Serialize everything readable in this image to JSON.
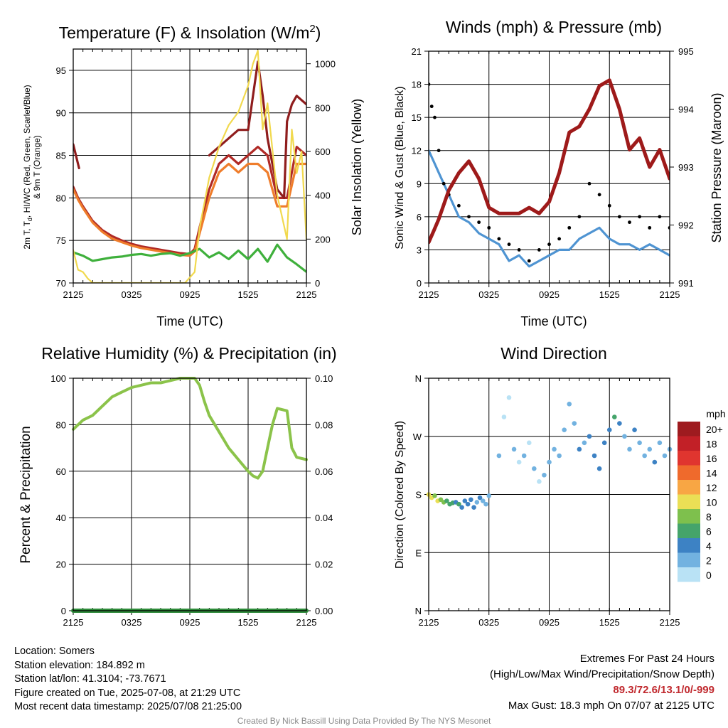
{
  "panels": {
    "temp": {
      "title_main": "Temperature (F) & Insolation (W/m",
      "title_sup": "2",
      "title_end": ")",
      "xlabel": "Time (UTC)",
      "ylabel_left_line1": "2m T, T",
      "ylabel_left_sub": "d",
      "ylabel_left_line1_end": ", HI/WC (Red, Green, Scarlet/Blue)",
      "ylabel_left_line2": "& 9m T (Orange)",
      "ylabel_right": "Solar Insolation (Yellow)"
    },
    "winds": {
      "title": "Winds (mph) & Pressure (mb)",
      "xlabel": "Time (UTC)",
      "ylabel_left": "Sonic Wind & Gust (Blue, Black)",
      "ylabel_right": "Station Pressure (Maroon)"
    },
    "rh": {
      "title": "Relative Humidity (%) & Precipitation (in)",
      "ylabel_left": "Percent & Precipitation"
    },
    "wdir": {
      "title": "Wind Direction",
      "ylabel_left": "Direction (Colored By Speed)",
      "colorbar_unit": "mph",
      "colorbar_labels": [
        "20+",
        "18",
        "16",
        "14",
        "12",
        "10",
        "8",
        "6",
        "4",
        "2",
        "0"
      ],
      "colorbar_colors": [
        "#9e1b1f",
        "#c22027",
        "#e0352f",
        "#ef6a2c",
        "#f8a644",
        "#eadf55",
        "#7ec04d",
        "#45a46b",
        "#3d82c4",
        "#72b2e0",
        "#b9e2f5"
      ]
    }
  },
  "footer": {
    "location": "Location: Somers",
    "elevation": "Station elevation: 184.892 m",
    "latlon": "Station lat/lon: 41.3104; -73.7671",
    "created": "Figure created on Tue, 2025-07-08, at 21:29 UTC",
    "recent": "Most recent data timestamp: 2025/07/08 21:25:00",
    "extremes_title": "Extremes For Past 24 Hours",
    "extremes_sub": "(High/Low/Max Wind/Precipitation/Snow Depth)",
    "extremes_values": "89.3/72.6/13.1/0/-999",
    "max_gust": "Max Gust: 18.3 mph On 07/07 at 2125 UTC",
    "credit": "Created By Nick Bassill Using Data Provided By The NYS Mesonet"
  },
  "chart_data": [
    {
      "type": "line",
      "panel": "Temperature & Insolation",
      "x_ticks": [
        "2125",
        "0325",
        "0925",
        "1525",
        "2125"
      ],
      "x_hours_since_2125": [
        0,
        6,
        12,
        18,
        24
      ],
      "ylim_left": [
        70,
        97.5
      ],
      "yticks_left": [
        70,
        75,
        80,
        85,
        90,
        95
      ],
      "ylim_right": [
        0,
        1067
      ],
      "yticks_right": [
        0,
        200,
        400,
        600,
        800,
        1000
      ],
      "series": [
        {
          "color": "#b02a26",
          "axis": "left",
          "x": [
            0,
            0.5,
            1,
            2,
            3,
            4,
            5,
            6,
            7,
            8,
            9,
            10,
            11,
            12,
            12.5,
            13,
            14,
            15,
            16,
            17,
            18,
            19,
            20,
            21,
            22,
            23,
            24
          ],
          "y": [
            81.3,
            80,
            79,
            77.3,
            76.2,
            75.5,
            75,
            74.6,
            74.3,
            74.1,
            73.9,
            73.7,
            73.5,
            73.4,
            74,
            76.5,
            81,
            84,
            85,
            84,
            85,
            86,
            85,
            80,
            80,
            86,
            85
          ]
        },
        {
          "color": "#ef7d2b",
          "axis": "left",
          "x": [
            0,
            0.5,
            1,
            2,
            3,
            4,
            5,
            6,
            7,
            8,
            9,
            10,
            11,
            12,
            12.5,
            13,
            14,
            15,
            16,
            17,
            18,
            19,
            20,
            21,
            22,
            23,
            24
          ],
          "y": [
            81,
            79.8,
            78.8,
            77.1,
            76,
            75.2,
            74.8,
            74.4,
            74.1,
            73.9,
            73.7,
            73.5,
            73.3,
            73.2,
            73.7,
            75.8,
            80,
            83,
            84,
            83,
            84,
            84,
            83,
            79,
            79,
            84,
            84
          ]
        },
        {
          "color": "#8f1d1d",
          "axis": "left",
          "x": [
            0,
            0.6,
            13,
            14,
            15,
            16,
            17,
            18,
            19,
            19.5,
            20,
            21,
            21.7,
            22,
            22.5,
            23,
            24
          ],
          "y": [
            86.3,
            83.5,
            null,
            85,
            86,
            87,
            88,
            88,
            96,
            92,
            87,
            81,
            80,
            89,
            91,
            92,
            91
          ]
        },
        {
          "color": "#3fb03c",
          "axis": "left",
          "x": [
            0,
            1,
            2,
            3,
            4,
            5,
            6,
            7,
            8,
            9,
            10,
            11,
            12,
            13,
            14,
            15,
            16,
            17,
            18,
            19,
            20,
            21,
            22,
            23,
            24
          ],
          "y": [
            73.6,
            73.2,
            72.6,
            72.8,
            73,
            73.1,
            73.3,
            73.4,
            73.2,
            73.4,
            73.5,
            73.2,
            73.5,
            74,
            73,
            73.6,
            72.8,
            73.8,
            72.8,
            74,
            72.5,
            74.5,
            73,
            72.2,
            71.3
          ]
        },
        {
          "color": "#f1d94e",
          "axis": "right",
          "x": [
            0,
            0.5,
            1,
            1.5,
            2,
            3,
            4,
            6,
            8,
            10,
            11.5,
            12.5,
            13,
            14,
            15,
            16,
            17,
            18,
            18.5,
            19,
            19.5,
            20,
            21,
            22,
            22.5,
            23,
            23.5,
            24
          ],
          "y": [
            150,
            60,
            50,
            20,
            0,
            0,
            0,
            0,
            0,
            0,
            0,
            50,
            250,
            480,
            620,
            720,
            780,
            900,
            1000,
            1060,
            700,
            820,
            400,
            200,
            700,
            500,
            600,
            200
          ]
        }
      ]
    },
    {
      "type": "line",
      "panel": "Winds & Pressure",
      "x_ticks": [
        "2125",
        "0325",
        "0925",
        "1525",
        "2125"
      ],
      "x_hours_since_2125": [
        0,
        6,
        12,
        18,
        24
      ],
      "ylim_left": [
        0,
        21
      ],
      "yticks_left": [
        0,
        3,
        6,
        9,
        12,
        15,
        18,
        21
      ],
      "ylim_right": [
        991,
        995
      ],
      "yticks_right": [
        991,
        992,
        993,
        994,
        995
      ],
      "series": [
        {
          "color": "#4f94d2",
          "axis": "left",
          "x": [
            0,
            0.5,
            1,
            2,
            3,
            4,
            5,
            6,
            7,
            8,
            9,
            10,
            11,
            12,
            13,
            14,
            15,
            16,
            17,
            18,
            19,
            20,
            21,
            22,
            23,
            24
          ],
          "y": [
            12,
            11,
            10,
            8,
            6,
            5.5,
            4.5,
            4,
            3.5,
            2,
            2.5,
            1.5,
            2,
            2.5,
            3,
            3,
            4,
            4.5,
            5,
            4,
            3.5,
            3.5,
            3,
            3.5,
            3,
            2.5
          ]
        },
        {
          "color": "#000000",
          "axis": "left",
          "style": "points",
          "x": [
            0,
            0.3,
            0.6,
            1,
            1.5,
            2,
            3,
            4,
            5,
            6,
            7,
            8,
            9,
            10,
            11,
            12,
            13,
            14,
            15,
            16,
            17,
            18,
            19,
            20,
            21,
            22,
            23,
            24
          ],
          "y": [
            18,
            16,
            15,
            12,
            9,
            8,
            7,
            6,
            5.5,
            5,
            4,
            3.5,
            3,
            2,
            3,
            3.5,
            4,
            5,
            6,
            9,
            8,
            7,
            6,
            5.5,
            6,
            5,
            6,
            5
          ]
        },
        {
          "color": "#9e1a1a",
          "axis": "right",
          "x": [
            0,
            0.5,
            1,
            2,
            3,
            4,
            5,
            6,
            7,
            8,
            9,
            10,
            11,
            12,
            13,
            14,
            15,
            16,
            17,
            18,
            19,
            20,
            21,
            22,
            23,
            24
          ],
          "y": [
            991.7,
            991.9,
            992.1,
            992.6,
            992.9,
            993.1,
            992.8,
            992.3,
            992.2,
            992.2,
            992.2,
            992.3,
            992.2,
            992.4,
            992.9,
            993.6,
            993.7,
            994.0,
            994.4,
            994.5,
            994.0,
            993.3,
            993.5,
            993.0,
            993.3,
            992.8
          ]
        }
      ]
    },
    {
      "type": "line",
      "panel": "Relative Humidity & Precipitation",
      "x_ticks": [
        "2125",
        "0325",
        "0925",
        "1525",
        "2125"
      ],
      "x_hours_since_2125": [
        0,
        6,
        12,
        18,
        24
      ],
      "ylim_left": [
        0,
        100
      ],
      "yticks_left": [
        0,
        20,
        40,
        60,
        80,
        100
      ],
      "ylim_right": [
        0,
        0.1
      ],
      "yticks_right": [
        0.0,
        0.02,
        0.04,
        0.06,
        0.08,
        0.1
      ],
      "series": [
        {
          "color": "#8bc34a",
          "axis": "left",
          "x": [
            0,
            0.5,
            1,
            2,
            3,
            4,
            5,
            6,
            7,
            8,
            9,
            10,
            11,
            12,
            12.5,
            13,
            13.5,
            14,
            15,
            16,
            17,
            18,
            18.5,
            19,
            19.5,
            20,
            20.5,
            21,
            22,
            22.5,
            23,
            24
          ],
          "y": [
            78,
            80,
            82,
            84,
            88,
            92,
            94,
            96,
            97,
            98,
            98,
            99,
            100,
            100,
            100,
            97,
            90,
            84,
            77,
            70,
            65,
            60,
            58,
            57,
            60,
            70,
            80,
            87,
            86,
            70,
            66,
            65
          ]
        },
        {
          "color": "#2e8b3a",
          "axis": "right",
          "x": [
            0,
            24
          ],
          "y": [
            0,
            0
          ]
        }
      ]
    },
    {
      "type": "scatter",
      "panel": "Wind Direction",
      "x_ticks": [
        "2125",
        "0325",
        "0925",
        "1525",
        "2125"
      ],
      "x_hours_since_2125": [
        0,
        6,
        12,
        18,
        24
      ],
      "y_categories": [
        "N",
        "E",
        "S",
        "W",
        "N"
      ],
      "y_degrees": [
        0,
        90,
        180,
        270,
        360
      ],
      "points_hours": [
        0,
        0.3,
        0.6,
        0.9,
        1.2,
        1.5,
        1.8,
        2.1,
        2.4,
        2.7,
        3,
        3.3,
        3.6,
        3.9,
        4.2,
        4.5,
        4.8,
        5.1,
        5.4,
        5.7,
        6,
        7,
        7.5,
        8,
        8.5,
        9,
        9.5,
        10,
        10.5,
        11,
        11.5,
        12,
        12.5,
        13,
        13.5,
        14,
        14.5,
        15,
        15.5,
        16,
        16.5,
        17,
        17.5,
        18,
        18.5,
        19,
        19.5,
        20,
        20.5,
        21,
        21.5,
        22,
        22.5,
        23,
        23.5,
        24
      ],
      "points_direction_deg": [
        180,
        175,
        178,
        170,
        172,
        168,
        170,
        165,
        167,
        168,
        165,
        160,
        170,
        165,
        172,
        160,
        168,
        175,
        170,
        165,
        178,
        240,
        300,
        330,
        250,
        230,
        240,
        260,
        220,
        200,
        210,
        230,
        250,
        240,
        280,
        320,
        290,
        250,
        260,
        270,
        240,
        220,
        260,
        280,
        300,
        290,
        270,
        250,
        280,
        260,
        240,
        250,
        230,
        260,
        240,
        250
      ],
      "points_speed_mph": [
        11,
        10,
        9,
        10,
        9,
        8,
        7,
        6,
        6,
        5,
        6,
        5,
        4,
        5,
        4,
        4,
        3,
        4,
        3,
        3,
        3,
        2,
        1,
        1,
        2,
        1,
        2,
        1,
        2,
        1,
        2,
        2,
        3,
        2,
        3,
        2,
        3,
        4,
        3,
        4,
        4,
        5,
        4,
        5,
        6,
        4,
        3,
        3,
        4,
        3,
        3,
        3,
        4,
        3,
        3,
        3
      ]
    }
  ]
}
